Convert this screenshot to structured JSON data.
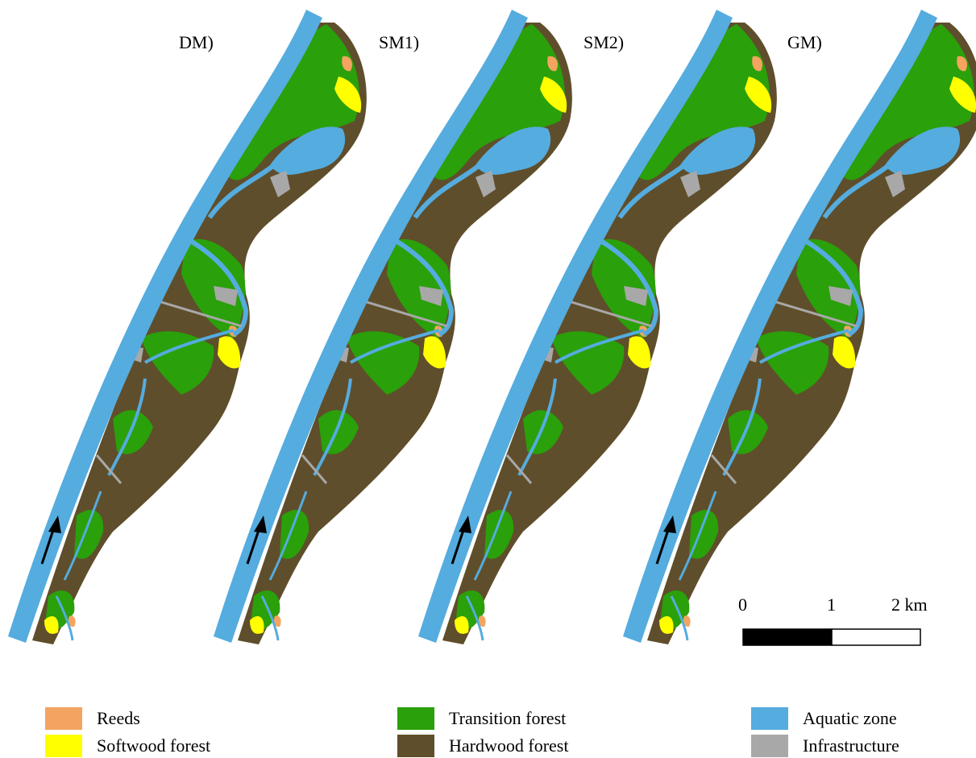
{
  "panels": [
    {
      "title": "DM)"
    },
    {
      "title": "SM1)"
    },
    {
      "title": "SM2)"
    },
    {
      "title": "GM)"
    }
  ],
  "scale_bar": {
    "labels": [
      "0",
      "1",
      "2 km"
    ],
    "segment_colors": [
      "#000000",
      "#ffffff"
    ]
  },
  "legend": [
    {
      "label": "Reeds",
      "color": "#f4a460"
    },
    {
      "label": "Softwood forest",
      "color": "#ffff00"
    },
    {
      "label": "Transition forest",
      "color": "#2aa00a"
    },
    {
      "label": "Hardwood forest",
      "color": "#5f4e2b"
    },
    {
      "label": "Aquatic zone",
      "color": "#55acdf"
    },
    {
      "label": "Infrastructure",
      "color": "#a8a8a8"
    }
  ],
  "flow_direction_icon": "arrow-icon"
}
